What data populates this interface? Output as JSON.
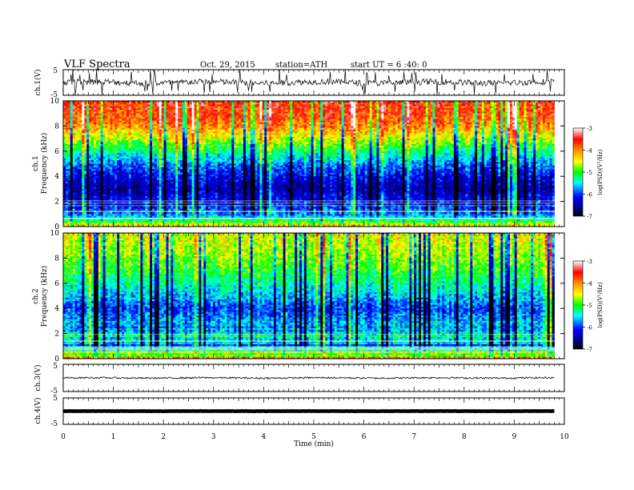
{
  "header": {
    "title": "VLF  Spectra",
    "date": "Oct. 29, 2015",
    "station": "station=ATH",
    "start": "start  UT  =   6  :40: 0"
  },
  "colors": {
    "colormap": [
      "#000000",
      "#00008b",
      "#0000ff",
      "#00ffff",
      "#00ff00",
      "#ffff00",
      "#ff8c00",
      "#ff0000",
      "#ffffff"
    ]
  },
  "chart_data": [
    {
      "type": "line",
      "name": "ch1-waveform",
      "ylabel": "ch.1(V)",
      "ylim": [
        -5,
        5
      ],
      "yticks": [
        "5",
        "-5"
      ],
      "baseline": 0,
      "amplitude": 1.2,
      "spikes": true
    },
    {
      "type": "heatmap",
      "name": "ch1-spectrogram",
      "ylabel": "ch.1\nFrequency (kHz)",
      "ylabel_lines": [
        "ch.1",
        "Frequency (kHz)"
      ],
      "ylim": [
        0,
        10
      ],
      "yticks": [
        "0",
        "2",
        "4",
        "6",
        "8",
        "10"
      ],
      "colorbar": {
        "label": "log(PSD)(V²/Hz)",
        "range": [
          -7,
          -3
        ],
        "ticks": [
          "-3",
          "-4",
          "-5",
          "-6",
          "-7"
        ]
      },
      "profile_freq_khz": [
        0,
        0.5,
        1,
        2,
        2.5,
        3,
        4,
        5,
        6,
        7,
        8,
        9,
        10
      ],
      "profile_logpsd": [
        -4.2,
        -5.2,
        -5.8,
        -6.2,
        -6.3,
        -6.5,
        -6.2,
        -5.8,
        -5.2,
        -4.6,
        -4.0,
        -3.7,
        -3.6
      ]
    },
    {
      "type": "heatmap",
      "name": "ch2-spectrogram",
      "ylabel_lines": [
        "ch.2",
        "Frequency (kHz)"
      ],
      "ylim": [
        0,
        10
      ],
      "yticks": [
        "0",
        "2",
        "4",
        "6",
        "8",
        "10"
      ],
      "colorbar": {
        "label": "log(PSD)(V²/Hz)",
        "range": [
          -7,
          -3
        ],
        "ticks": [
          "-3",
          "-4",
          "-5",
          "-6",
          "-7"
        ]
      },
      "profile_freq_khz": [
        0,
        0.5,
        1,
        2,
        3,
        4,
        5,
        6,
        7,
        8,
        9,
        10
      ],
      "profile_logpsd": [
        -4.4,
        -5.2,
        -5.6,
        -5.5,
        -5.7,
        -6.0,
        -5.6,
        -5.3,
        -5.0,
        -4.8,
        -4.6,
        -4.5
      ]
    },
    {
      "type": "line",
      "name": "ch3-waveform",
      "ylabel": "ch.3(V)",
      "ylim": [
        -5,
        5
      ],
      "yticks": [
        "5",
        "-5"
      ],
      "baseline": 0,
      "amplitude": 0.3,
      "spikes": false
    },
    {
      "type": "line",
      "name": "ch4-waveform",
      "ylabel": "ch.4(V)",
      "ylim": [
        -5,
        5
      ],
      "yticks": [
        "5",
        "-5"
      ],
      "baseline": 0,
      "amplitude": 0.05,
      "spikes": false
    }
  ],
  "xaxis": {
    "label": "Time  (min)",
    "xlim": [
      0,
      10
    ],
    "data_end": 9.8,
    "ticks": [
      "0",
      "1",
      "2",
      "3",
      "4",
      "5",
      "6",
      "7",
      "8",
      "9",
      "10"
    ]
  }
}
